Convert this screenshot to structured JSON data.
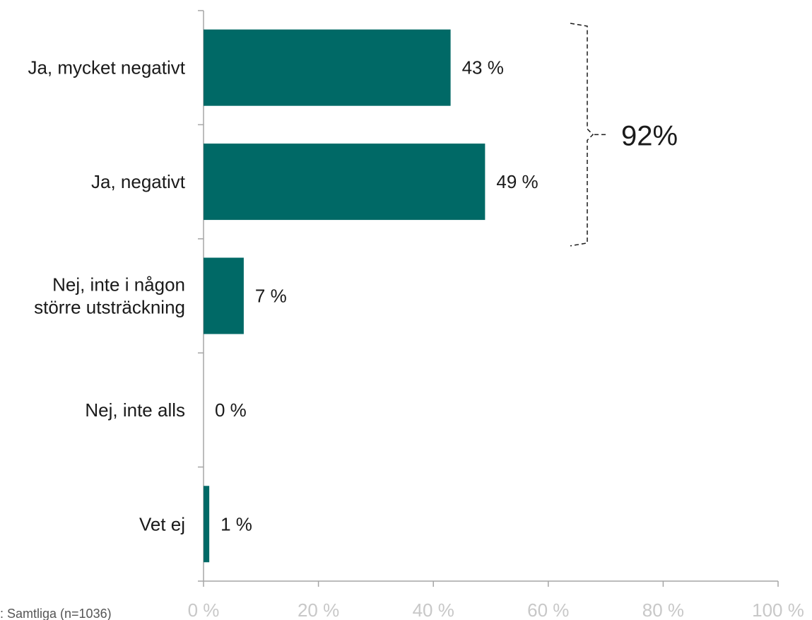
{
  "chart_data": {
    "type": "bar",
    "orientation": "horizontal",
    "categories": [
      [
        "Ja, mycket negativt"
      ],
      [
        "Ja, negativt"
      ],
      [
        "Nej, inte i någon",
        "större utsträckning"
      ],
      [
        "Nej, inte alls"
      ],
      [
        "Vet ej"
      ]
    ],
    "values": [
      43,
      49,
      7,
      0,
      1
    ],
    "value_labels": [
      "43 %",
      "49 %",
      "7 %",
      "0 %",
      "1 %"
    ],
    "xlim": [
      0,
      100
    ],
    "x_ticks": [
      "0 %",
      "20 %",
      "40 %",
      "60 %",
      "80 %",
      "100 %"
    ],
    "bar_color": "#006966",
    "axis_color": "#a6a6a6",
    "tick_label_color": "#c8c8c8",
    "grid": false,
    "legend": "none",
    "annotation": {
      "text": "92%",
      "spans_categories": [
        0,
        1
      ]
    },
    "footnote": ": Samtliga (n=1036)"
  }
}
